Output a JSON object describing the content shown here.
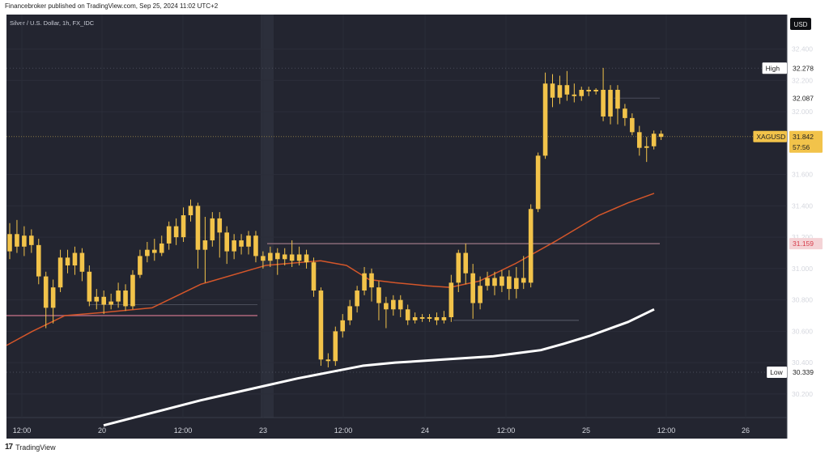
{
  "header": {
    "publisher_line": "Financebroker published on TradingView.com, Sep 25, 2024 11:02 UTC+2"
  },
  "footer": {
    "logo_text": "TradingView"
  },
  "colors": {
    "background": "#232530",
    "candle": "#f2c34a",
    "ma_fast": "#d4562a",
    "ma_slow": "#ffffff",
    "label_bg": "#f2c34a",
    "resistance_label_bg": "#f4d3d6",
    "resistance_label_fg": "#d63c4a"
  },
  "chart_data": {
    "type": "candlestick",
    "title": "Silver / U.S. Dollar, 1h, FX_IDC",
    "currency_label": "USD",
    "y_ticks": [
      "32.400",
      "32.200",
      "32.000",
      "31.600",
      "31.400",
      "31.200",
      "31.000",
      "30.800",
      "30.600",
      "30.400",
      "30.200"
    ],
    "ylim": [
      30.05,
      32.62
    ],
    "x_ticks": [
      "12:00",
      "20",
      "12:00",
      "23",
      "12:00",
      "24",
      "12:00",
      "25",
      "12:00",
      "26"
    ],
    "high": {
      "label": "High",
      "value": "32.278"
    },
    "low": {
      "label": "Low",
      "value": "30.339"
    },
    "line_32087": {
      "value": "32.087"
    },
    "resistance": {
      "value": "31.159"
    },
    "current": {
      "symbol": "XAGUSD",
      "value": "31.842",
      "countdown": "57:56"
    },
    "candles": [
      [
        31.11,
        31.22,
        31.29,
        31.06
      ],
      [
        31.22,
        31.14,
        31.31,
        31.1
      ],
      [
        31.14,
        31.21,
        31.27,
        31.08
      ],
      [
        31.21,
        31.15,
        31.25,
        31.1
      ],
      [
        31.15,
        30.95,
        31.19,
        30.9
      ],
      [
        30.95,
        30.75,
        30.98,
        30.62
      ],
      [
        30.75,
        30.88,
        30.93,
        30.65
      ],
      [
        30.88,
        31.07,
        31.12,
        30.85
      ],
      [
        31.07,
        31.02,
        31.12,
        30.97
      ],
      [
        31.02,
        31.1,
        31.14,
        30.96
      ],
      [
        31.1,
        30.98,
        31.13,
        30.92
      ],
      [
        30.98,
        30.79,
        31.02,
        30.76
      ],
      [
        30.79,
        30.82,
        30.87,
        30.74
      ],
      [
        30.82,
        30.77,
        30.86,
        30.71
      ],
      [
        30.77,
        30.79,
        30.84,
        30.74
      ],
      [
        30.79,
        30.86,
        30.91,
        30.75
      ],
      [
        30.86,
        30.76,
        30.9,
        30.73
      ],
      [
        30.76,
        30.96,
        30.99,
        30.74
      ],
      [
        30.96,
        31.08,
        31.12,
        30.94
      ],
      [
        31.08,
        31.12,
        31.17,
        31.04
      ],
      [
        31.12,
        31.1,
        31.19,
        31.05
      ],
      [
        31.1,
        31.16,
        31.21,
        31.08
      ],
      [
        31.16,
        31.27,
        31.3,
        31.12
      ],
      [
        31.27,
        31.2,
        31.32,
        31.15
      ],
      [
        31.2,
        31.34,
        31.39,
        31.17
      ],
      [
        31.34,
        31.4,
        31.44,
        31.3
      ],
      [
        31.4,
        31.12,
        31.42,
        31.0
      ],
      [
        31.12,
        31.18,
        31.33,
        30.91
      ],
      [
        31.18,
        31.32,
        31.36,
        31.14
      ],
      [
        31.32,
        31.23,
        31.36,
        31.07
      ],
      [
        31.23,
        31.11,
        31.27,
        31.03
      ],
      [
        31.11,
        31.18,
        31.22,
        31.06
      ],
      [
        31.18,
        31.14,
        31.22,
        31.09
      ],
      [
        31.14,
        31.21,
        31.24,
        31.09
      ],
      [
        31.21,
        31.08,
        31.24,
        31.04
      ],
      [
        31.08,
        31.05,
        31.11,
        31.0
      ],
      [
        31.05,
        31.1,
        31.14,
        31.01
      ],
      [
        31.1,
        31.06,
        31.13,
        30.96
      ],
      [
        31.06,
        31.09,
        31.13,
        31.02
      ],
      [
        31.09,
        31.05,
        31.18,
        31.01
      ],
      [
        31.05,
        31.09,
        31.14,
        31.02
      ],
      [
        31.09,
        31.04,
        31.12,
        31.0
      ],
      [
        31.04,
        30.86,
        31.07,
        30.82
      ],
      [
        30.86,
        30.42,
        30.88,
        30.38
      ],
      [
        30.42,
        30.41,
        30.46,
        30.37
      ],
      [
        30.41,
        30.6,
        30.63,
        30.38
      ],
      [
        30.6,
        30.67,
        30.71,
        30.56
      ],
      [
        30.67,
        30.76,
        30.8,
        30.64
      ],
      [
        30.76,
        30.86,
        30.89,
        30.72
      ],
      [
        30.86,
        30.97,
        31.01,
        30.83
      ],
      [
        30.97,
        30.88,
        31.0,
        30.79
      ],
      [
        30.88,
        30.78,
        30.92,
        30.67
      ],
      [
        30.78,
        30.74,
        30.82,
        30.62
      ],
      [
        30.74,
        30.8,
        30.83,
        30.7
      ],
      [
        30.8,
        30.74,
        30.83,
        30.69
      ],
      [
        30.74,
        30.67,
        30.77,
        30.64
      ],
      [
        30.67,
        30.69,
        30.72,
        30.65
      ],
      [
        30.69,
        30.68,
        30.71,
        30.66
      ],
      [
        30.68,
        30.69,
        30.71,
        30.66
      ],
      [
        30.69,
        30.67,
        30.72,
        30.64
      ],
      [
        30.67,
        30.69,
        30.73,
        30.65
      ],
      [
        30.69,
        30.91,
        30.96,
        30.66
      ],
      [
        30.91,
        31.1,
        31.12,
        30.85
      ],
      [
        31.1,
        30.97,
        31.16,
        30.9
      ],
      [
        30.97,
        30.78,
        31.03,
        30.68
      ],
      [
        30.78,
        30.89,
        30.95,
        30.74
      ],
      [
        30.89,
        30.94,
        30.98,
        30.86
      ],
      [
        30.94,
        30.89,
        30.98,
        30.83
      ],
      [
        30.89,
        30.95,
        30.99,
        30.85
      ],
      [
        30.95,
        30.87,
        30.99,
        30.8
      ],
      [
        30.87,
        30.94,
        31.01,
        30.81
      ],
      [
        30.94,
        30.91,
        31.08,
        30.87
      ],
      [
        30.91,
        31.38,
        31.41,
        30.88
      ],
      [
        31.38,
        31.72,
        31.74,
        31.36
      ],
      [
        31.72,
        32.18,
        32.25,
        31.7
      ],
      [
        32.18,
        32.09,
        32.24,
        32.03
      ],
      [
        32.09,
        32.17,
        32.23,
        32.05
      ],
      [
        32.17,
        32.11,
        32.26,
        32.07
      ],
      [
        32.11,
        32.1,
        32.18,
        32.06
      ],
      [
        32.1,
        32.14,
        32.16,
        32.07
      ],
      [
        32.14,
        32.13,
        32.16,
        32.1
      ],
      [
        32.13,
        32.14,
        32.15,
        32.11
      ],
      [
        32.14,
        31.97,
        32.28,
        31.94
      ],
      [
        31.97,
        32.14,
        32.17,
        31.92
      ],
      [
        32.14,
        32.02,
        32.17,
        31.92
      ],
      [
        32.02,
        31.96,
        32.05,
        31.91
      ],
      [
        31.96,
        31.87,
        31.99,
        31.85
      ],
      [
        31.87,
        31.77,
        31.91,
        31.72
      ],
      [
        31.77,
        31.78,
        31.84,
        31.68
      ],
      [
        31.78,
        31.86,
        31.88,
        31.76
      ],
      [
        31.86,
        31.84,
        31.88,
        31.82
      ]
    ],
    "series": [
      {
        "name": "",
        "color": "#d4562a",
        "values": [
          [
            0,
            30.51
          ],
          [
            8,
            30.6
          ],
          [
            18,
            30.7
          ],
          [
            30,
            30.72
          ],
          [
            45,
            30.75
          ],
          [
            60,
            30.9
          ],
          [
            80,
            31.02
          ],
          [
            97,
            31.05
          ],
          [
            105,
            31.02
          ],
          [
            112,
            30.93
          ],
          [
            120,
            30.91
          ],
          [
            130,
            30.89
          ],
          [
            137,
            30.88
          ],
          [
            146,
            30.92
          ],
          [
            157,
            31.03
          ],
          [
            170,
            31.18
          ],
          [
            183,
            31.34
          ],
          [
            192,
            31.42
          ],
          [
            200,
            31.48
          ]
        ]
      },
      {
        "name": "",
        "color": "#ffffff",
        "values": [
          [
            30,
            30.0
          ],
          [
            45,
            30.08
          ],
          [
            60,
            30.16
          ],
          [
            75,
            30.23
          ],
          [
            90,
            30.3
          ],
          [
            100,
            30.34
          ],
          [
            110,
            30.38
          ],
          [
            120,
            30.4
          ],
          [
            135,
            30.42
          ],
          [
            150,
            30.44
          ],
          [
            165,
            30.48
          ],
          [
            172,
            30.52
          ],
          [
            180,
            30.57
          ],
          [
            192,
            30.66
          ],
          [
            200,
            30.74
          ]
        ]
      }
    ]
  }
}
